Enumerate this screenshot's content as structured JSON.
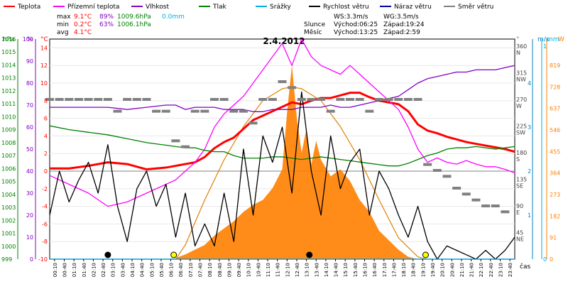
{
  "legend": [
    {
      "label": "Teplota",
      "color": "#ff0000"
    },
    {
      "label": "Přízemní teplota",
      "color": "#ff00ff"
    },
    {
      "label": "Vlhkost",
      "color": "#8000c0"
    },
    {
      "label": "Tlak",
      "color": "#008000"
    },
    {
      "label": "Srážky",
      "color": "#00b0e0"
    },
    {
      "label": "Rychlost větru",
      "color": "#000000"
    },
    {
      "label": "Náraz větru",
      "color": "#0000a0"
    },
    {
      "label": "Směr větru",
      "color": "#808080"
    }
  ],
  "stats": {
    "max": {
      "label": "max",
      "temp": "9.1°C",
      "hum": "89%",
      "pres": "1009.6hPa",
      "rain": "0.0mm"
    },
    "min": {
      "label": "min",
      "temp": "0.2°C",
      "hum": "63%",
      "pres": "1006.1hPa"
    },
    "avg": {
      "label": "avg",
      "temp": "4.1°C"
    }
  },
  "wind_info": {
    "ws": "WS:3.3m/s",
    "wg": "WG:3.5m/s"
  },
  "sun_info": {
    "label": "Slunce",
    "rise": "Východ:06:25",
    "set": "Západ:19:24"
  },
  "moon_info": {
    "label": "Měsíc",
    "rise": "Východ:13:25",
    "set": "Západ:2:59"
  },
  "chart_data": {
    "type": "line",
    "title": "2.4.2012",
    "xlabel": "čas",
    "x_ticks": [
      "00:10",
      "00:40",
      "01:10",
      "01:40",
      "02:10",
      "02:40",
      "03:10",
      "03:40",
      "04:10",
      "04:40",
      "05:10",
      "05:40",
      "06:10",
      "06:40",
      "07:10",
      "07:40",
      "08:10",
      "08:40",
      "09:10",
      "09:40",
      "10:10",
      "10:40",
      "11:10",
      "11:40",
      "12:10",
      "12:40",
      "13:10",
      "13:40",
      "14:10",
      "14:40",
      "15:10",
      "15:40",
      "16:10",
      "16:40",
      "17:10",
      "17:40",
      "18:10",
      "18:40",
      "19:10",
      "19:40",
      "20:10",
      "20:40",
      "21:10",
      "21:40",
      "22:10",
      "22:40",
      "23:10",
      "23:40"
    ],
    "axes": {
      "pressure": {
        "unit": "hPa",
        "range": [
          999,
          1016
        ],
        "ticks": [
          "1016",
          "1015",
          "1014",
          "1013",
          "1012",
          "1011",
          "1010",
          "1009",
          "1008",
          "1007",
          "1006",
          "1005",
          "1004",
          "1003",
          "1002",
          "1001",
          "1000",
          "999"
        ]
      },
      "humidity": {
        "unit": "%",
        "range": [
          0,
          100
        ],
        "ticks": [
          "100",
          "90",
          "80",
          "70",
          "60",
          "50",
          "40",
          "30",
          "20",
          "10",
          "0"
        ]
      },
      "temperature": {
        "unit": "°C",
        "range": [
          -10,
          15
        ],
        "ticks": [
          "14",
          "12",
          "10",
          "8",
          "6",
          "4",
          "2",
          "0",
          "-2",
          "-4",
          "-6",
          "-8",
          "-10"
        ]
      },
      "wind_direction": {
        "unit": "°",
        "ticks": [
          {
            "deg": "360",
            "dir": "N",
            "y": 0
          },
          {
            "deg": "315",
            "dir": "NW",
            "y": 45
          },
          {
            "deg": "270",
            "dir": "W",
            "y": 90
          },
          {
            "deg": "225",
            "dir": "SW",
            "y": 135
          },
          {
            "deg": "180",
            "dir": "S",
            "y": 180
          },
          {
            "deg": "135",
            "dir": "SE",
            "y": 225
          },
          {
            "deg": "90",
            "dir": "E",
            "y": 270
          },
          {
            "deg": "45",
            "dir": "NE",
            "y": 315
          }
        ]
      },
      "wind_speed": {
        "unit": "m/s",
        "range": [
          0,
          5
        ],
        "ticks": [
          "4",
          "3",
          "2",
          "1"
        ]
      },
      "rain": {
        "unit": "mm",
        "range": [
          0,
          1
        ],
        "ticks": [
          "1",
          "0"
        ]
      },
      "solar": {
        "unit": "W",
        "range": [
          0,
          900
        ],
        "ticks": [
          "819",
          "728",
          "637",
          "546",
          "455",
          "364",
          "273",
          "182",
          "91",
          "0"
        ]
      }
    },
    "series": [
      {
        "name": "Teplota",
        "axis": "temperature",
        "color": "#ff0000",
        "x": [
          0,
          1,
          2,
          3,
          4,
          5,
          6,
          6.5,
          7,
          7.5,
          8,
          8.5,
          9,
          9.5,
          10,
          10.5,
          11,
          11.5,
          12,
          12.5,
          13,
          13.5,
          14,
          14.5,
          15,
          15.5,
          16,
          16.5,
          17,
          17.5,
          18,
          18.5,
          19,
          19.5,
          20,
          20.5,
          21,
          21.5,
          22,
          22.5,
          23,
          23.5,
          24
        ],
        "y": [
          0.3,
          0.3,
          0.6,
          1.0,
          0.8,
          0.2,
          0.4,
          0.6,
          0.8,
          1.0,
          1.6,
          2.6,
          3.3,
          3.8,
          4.8,
          5.8,
          6.3,
          6.8,
          7.3,
          7.8,
          7.6,
          8.0,
          8.3,
          8.3,
          8.6,
          8.9,
          8.9,
          8.4,
          8.0,
          7.8,
          7.6,
          6.8,
          5.3,
          4.6,
          4.3,
          3.9,
          3.6,
          3.3,
          3.1,
          2.9,
          2.7,
          2.5,
          2.2
        ]
      },
      {
        "name": "Přízemní teplota",
        "axis": "temperature",
        "color": "#ff00ff",
        "x": [
          0,
          1,
          2,
          3,
          4,
          5,
          6,
          6.5,
          7,
          7.5,
          8,
          8.5,
          9,
          9.5,
          10,
          10.5,
          11,
          11.5,
          12,
          12.5,
          13,
          13.5,
          14,
          14.5,
          15,
          15.5,
          16,
          16.5,
          17,
          17.5,
          18,
          18.5,
          19,
          19.5,
          20,
          20.5,
          21,
          21.5,
          22,
          22.5,
          23,
          23.5,
          24
        ],
        "y": [
          -0.5,
          -1.5,
          -2.5,
          -4.0,
          -3.5,
          -2.5,
          -1.5,
          -1.0,
          0.0,
          1.0,
          2.5,
          5.0,
          6.5,
          7.5,
          8.5,
          10.0,
          11.5,
          13.0,
          14.5,
          12.0,
          15.0,
          13.0,
          12.0,
          11.5,
          11.0,
          12.0,
          11.0,
          10.0,
          9.0,
          8.0,
          7.0,
          5.0,
          2.5,
          1.0,
          1.5,
          1.0,
          0.8,
          1.2,
          0.8,
          0.5,
          0.5,
          0.2,
          -0.2
        ]
      },
      {
        "name": "Vlhkost",
        "axis": "humidity",
        "color": "#8000c0",
        "x": [
          0,
          1,
          2,
          3,
          4,
          5,
          6,
          6.5,
          7,
          7.5,
          8,
          8.5,
          9,
          9.5,
          10,
          10.5,
          11,
          11.5,
          12,
          12.5,
          13,
          13.5,
          14,
          14.5,
          15,
          15.5,
          16,
          16.5,
          17,
          17.5,
          18,
          18.5,
          19,
          19.5,
          20,
          20.5,
          21,
          21.5,
          22,
          22.5,
          23,
          23.5,
          24
        ],
        "y": [
          69,
          69,
          69,
          69,
          68,
          69,
          70,
          70,
          68,
          69,
          69,
          69,
          68,
          68,
          68,
          67,
          67,
          68,
          68,
          68,
          69,
          69,
          69,
          70,
          69,
          69,
          70,
          71,
          72,
          73,
          74,
          77,
          80,
          82,
          83,
          84,
          85,
          85,
          86,
          86,
          86,
          87,
          88
        ]
      },
      {
        "name": "Tlak",
        "axis": "pressure",
        "color": "#008000",
        "x": [
          0,
          1,
          2,
          3,
          4,
          5,
          6,
          6.5,
          7,
          7.5,
          8,
          8.5,
          9,
          9.5,
          10,
          10.5,
          11,
          11.5,
          12,
          12.5,
          13,
          13.5,
          14,
          14.5,
          15,
          15.5,
          16,
          16.5,
          17,
          17.5,
          18,
          18.5,
          19,
          19.5,
          20,
          20.5,
          21,
          21.5,
          22,
          22.5,
          23,
          23.5,
          24
        ],
        "y": [
          1009.3,
          1009.0,
          1008.8,
          1008.6,
          1008.3,
          1008.0,
          1007.8,
          1007.7,
          1007.6,
          1007.6,
          1007.4,
          1007.3,
          1007.3,
          1007.0,
          1006.8,
          1006.8,
          1006.8,
          1006.9,
          1006.9,
          1006.8,
          1006.7,
          1006.8,
          1006.9,
          1006.8,
          1006.7,
          1006.6,
          1006.5,
          1006.4,
          1006.3,
          1006.2,
          1006.2,
          1006.4,
          1006.7,
          1007.0,
          1007.2,
          1007.5,
          1007.6,
          1007.6,
          1007.7,
          1007.6,
          1007.5,
          1007.6,
          1007.7
        ]
      },
      {
        "name": "Rychlost větru",
        "axis": "wind_speed",
        "color": "#000000",
        "x": [
          0,
          0.5,
          1,
          1.5,
          2,
          2.5,
          3,
          3.5,
          4,
          4.5,
          5,
          5.5,
          6,
          6.5,
          7,
          7.5,
          8,
          8.5,
          9,
          9.5,
          10,
          10.5,
          11,
          11.5,
          12,
          12.5,
          13,
          13.5,
          14,
          14.5,
          15,
          15.5,
          16,
          16.5,
          17,
          17.5,
          18,
          18.5,
          19,
          19.5,
          20,
          20.5,
          21,
          21.5,
          22,
          22.5,
          23,
          23.5,
          24
        ],
        "y": [
          1.0,
          2.0,
          1.3,
          1.8,
          2.2,
          1.5,
          2.6,
          1.2,
          0.4,
          1.6,
          2.0,
          1.2,
          1.7,
          0.5,
          1.5,
          0.3,
          0.8,
          0.3,
          1.5,
          0.4,
          2.5,
          1.0,
          2.8,
          2.2,
          3.0,
          1.5,
          3.8,
          2.0,
          1.0,
          2.8,
          1.6,
          2.2,
          2.5,
          1.0,
          2.0,
          1.6,
          1.0,
          0.5,
          1.2,
          0.4,
          0.0,
          0.3,
          0.2,
          0.1,
          0.0,
          0.2,
          0.0,
          0.2,
          0.5
        ]
      },
      {
        "name": "Směr větru",
        "axis": "wind_direction",
        "color": "#808080",
        "style": "dots",
        "x": [
          0,
          0.5,
          1,
          1.5,
          2,
          2.5,
          3,
          3.5,
          4,
          4.5,
          5,
          5.5,
          6,
          6.5,
          7,
          7.5,
          8,
          8.5,
          9,
          9.5,
          10,
          10.5,
          11,
          11.5,
          12,
          12.5,
          13,
          13.5,
          14,
          14.5,
          15,
          15.5,
          16,
          16.5,
          17,
          17.5,
          18,
          18.5,
          19,
          19.5,
          20,
          20.5,
          21,
          21.5,
          22,
          22.5,
          23,
          23.5
        ],
        "y": [
          270,
          270,
          270,
          270,
          270,
          270,
          270,
          250,
          270,
          270,
          270,
          250,
          250,
          200,
          190,
          250,
          250,
          270,
          270,
          250,
          250,
          230,
          270,
          270,
          300,
          290,
          270,
          270,
          270,
          250,
          270,
          270,
          270,
          250,
          270,
          270,
          270,
          270,
          270,
          160,
          150,
          140,
          120,
          110,
          100,
          90,
          90,
          80
        ]
      },
      {
        "name": "Náraz větru",
        "axis": "wind_speed",
        "color": "#0000a0",
        "x": [
          0,
          24
        ],
        "y": [
          0,
          0
        ]
      },
      {
        "name": "Srážky",
        "axis": "rain",
        "color": "#00b0e0",
        "x": [
          0,
          24
        ],
        "y": [
          0,
          0
        ]
      },
      {
        "name": "Solar",
        "axis": "solar",
        "color": "#ff8000",
        "style": "area",
        "x": [
          6.5,
          7,
          7.5,
          8,
          8.5,
          9,
          9.5,
          10,
          10.5,
          11,
          11.5,
          12,
          12.25,
          12.5,
          12.75,
          13,
          13.25,
          13.5,
          13.75,
          14,
          14.5,
          15,
          15.5,
          16,
          16.5,
          17,
          17.5,
          18,
          18.5,
          19
        ],
        "y": [
          5,
          20,
          40,
          60,
          100,
          130,
          160,
          200,
          230,
          250,
          300,
          380,
          620,
          820,
          600,
          450,
          550,
          400,
          500,
          420,
          350,
          380,
          330,
          250,
          200,
          120,
          80,
          40,
          10,
          0
        ]
      },
      {
        "name": "Solar theoretical",
        "axis": "solar",
        "color": "#e08000",
        "style": "line",
        "x": [
          6.5,
          7,
          8,
          9,
          10,
          11,
          12,
          12.5,
          13,
          14,
          15,
          16,
          17,
          18,
          19,
          19.4
        ],
        "y": [
          0,
          60,
          250,
          420,
          560,
          670,
          720,
          728,
          720,
          670,
          560,
          420,
          250,
          90,
          10,
          0
        ]
      }
    ],
    "markers": [
      {
        "type": "moonset",
        "x": 3.0
      },
      {
        "type": "sunrise",
        "x": 6.4
      },
      {
        "type": "moonrise",
        "x": 13.4
      },
      {
        "type": "sunset",
        "x": 19.4
      }
    ]
  }
}
